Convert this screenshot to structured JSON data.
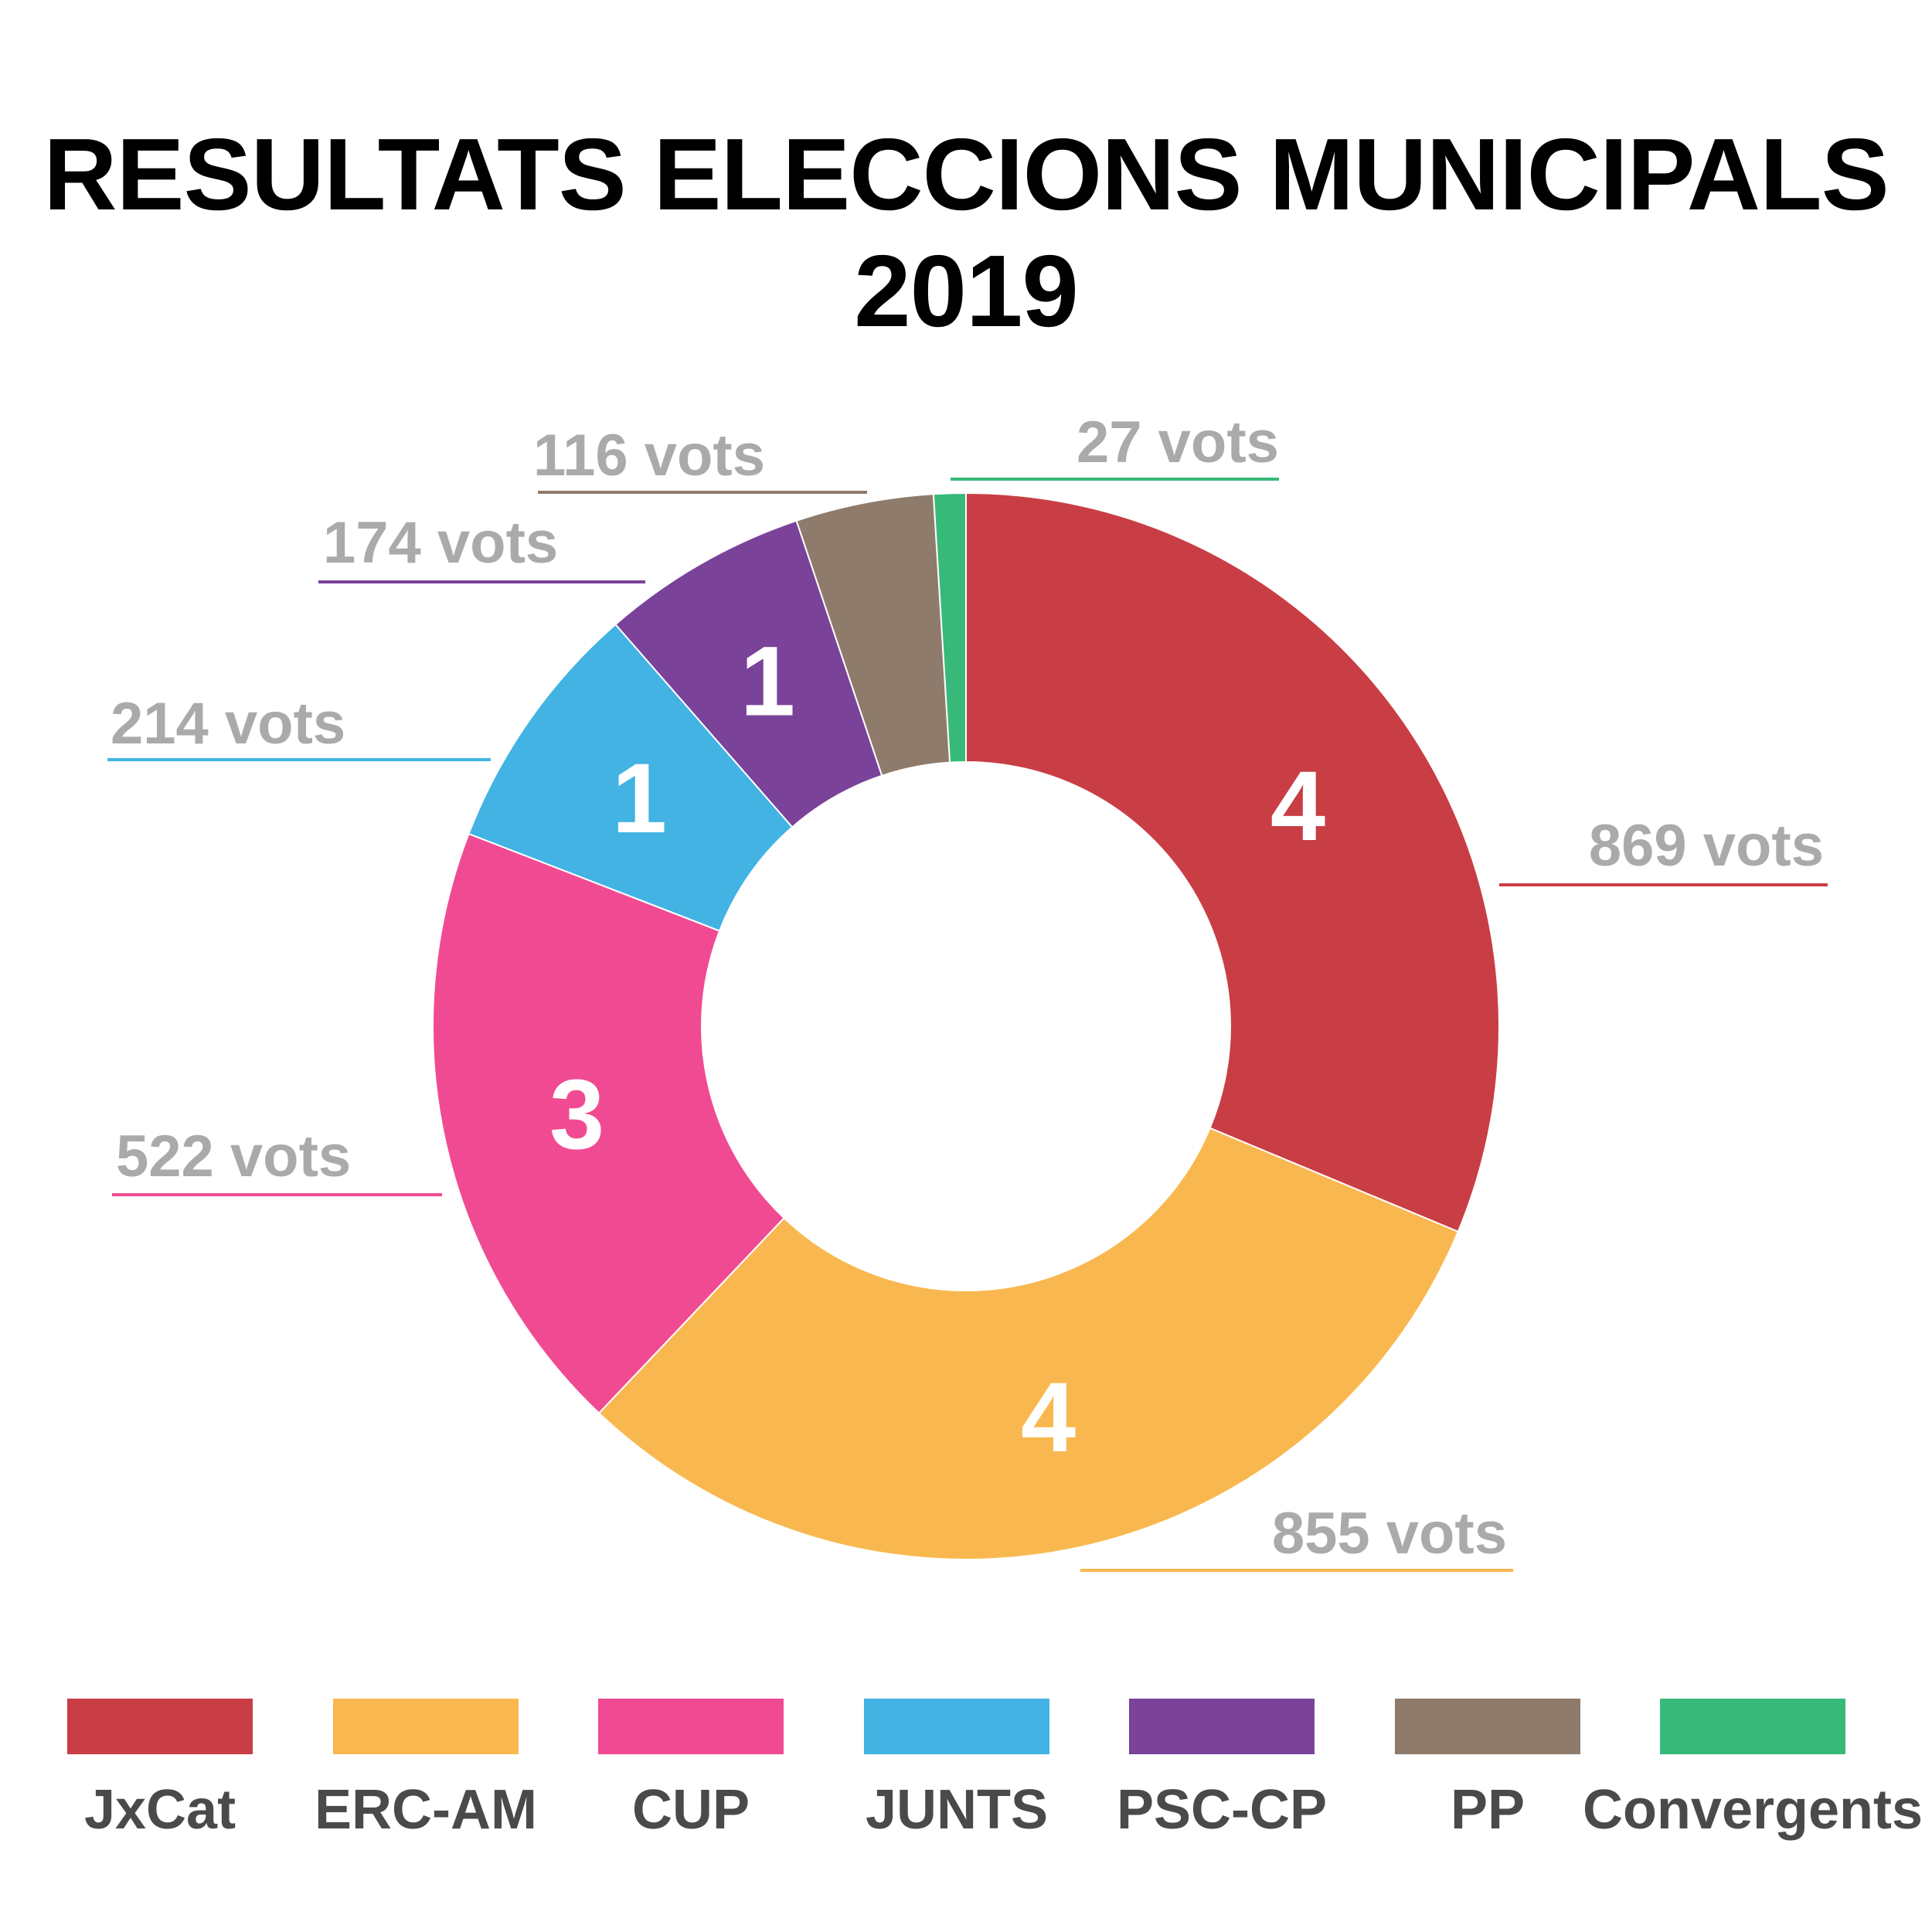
{
  "chart_data": {
    "type": "pie",
    "style": "donut",
    "title": "RESULTATS ELECCIONS MUNICIPALS 2019",
    "categories": [
      "JxCat",
      "ERC-AM",
      "CUP",
      "JUNTS",
      "PSC-CP",
      "PP",
      "Convergents"
    ],
    "series": [
      {
        "name": "vots",
        "values": [
          869,
          855,
          522,
          214,
          174,
          116,
          27
        ]
      },
      {
        "name": "seats",
        "values": [
          4,
          4,
          3,
          1,
          1,
          null,
          null
        ]
      }
    ],
    "slice_labels": [
      "869 vots",
      "855 vots",
      "522 vots",
      "214 vots",
      "174 vots",
      "116 vots",
      "27 vots"
    ],
    "seat_labels": [
      "4",
      "4",
      "3",
      "1",
      "1",
      "",
      ""
    ],
    "colors": [
      "#c83e44",
      "#f9b84f",
      "#f04b92",
      "#42b3e3",
      "#7a4299",
      "#8e7b6c",
      "#37b97a"
    ],
    "legend_position": "bottom"
  }
}
